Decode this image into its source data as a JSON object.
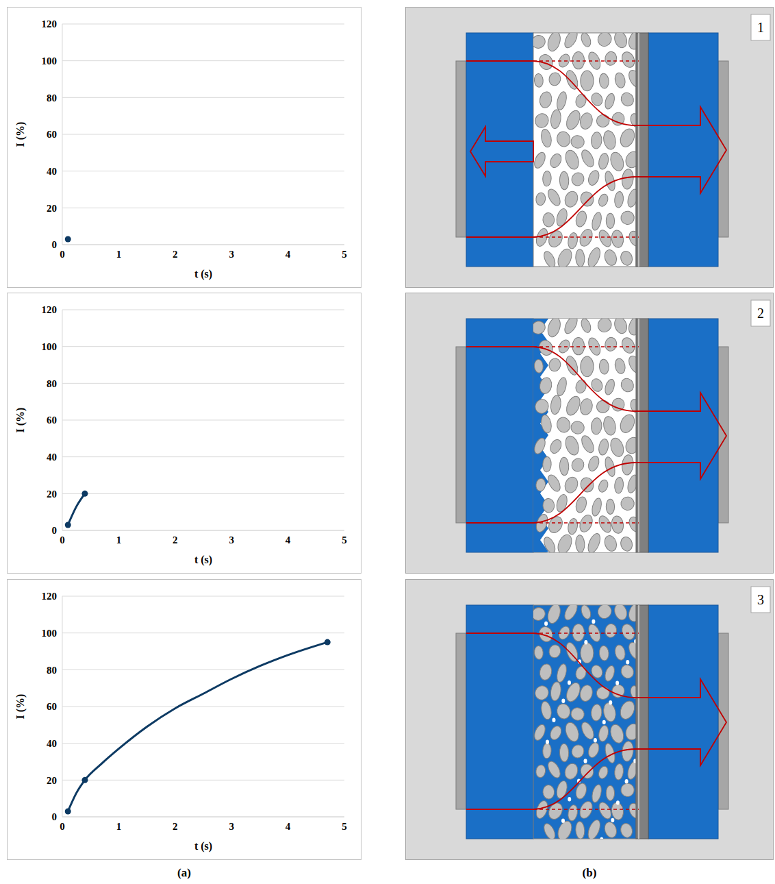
{
  "chart_data": [
    {
      "type": "line",
      "xlabel": "t (s)",
      "ylabel": "I (%)",
      "xlim": [
        0,
        5
      ],
      "xticks": [
        0,
        1,
        2,
        3,
        4,
        5
      ],
      "ylim": [
        0,
        120
      ],
      "yticks": [
        0,
        20,
        40,
        60,
        80,
        100,
        120
      ],
      "grid": true,
      "color": "#0d3a63",
      "series": [
        {
          "type": "scatter",
          "marker": "circle",
          "x": [
            0.1
          ],
          "values": [
            3
          ]
        }
      ]
    },
    {
      "type": "line",
      "xlabel": "t (s)",
      "ylabel": "I (%)",
      "xlim": [
        0,
        5
      ],
      "xticks": [
        0,
        1,
        2,
        3,
        4,
        5
      ],
      "ylim": [
        0,
        120
      ],
      "yticks": [
        0,
        20,
        40,
        60,
        80,
        100,
        120
      ],
      "grid": true,
      "color": "#0d3a63",
      "series": [
        {
          "type": "line",
          "marker": "none",
          "x": [
            0.1,
            0.25,
            0.4
          ],
          "values": [
            3,
            13,
            20
          ]
        },
        {
          "type": "scatter",
          "marker": "circle",
          "x": [
            0.1,
            0.4
          ],
          "values": [
            3,
            20
          ]
        }
      ]
    },
    {
      "type": "line",
      "xlabel": "t (s)",
      "ylabel": "I (%)",
      "xlim": [
        0,
        5
      ],
      "xticks": [
        0,
        1,
        2,
        3,
        4,
        5
      ],
      "ylim": [
        0,
        120
      ],
      "yticks": [
        0,
        20,
        40,
        60,
        80,
        100,
        120
      ],
      "grid": true,
      "color": "#0d3a63",
      "series": [
        {
          "type": "line",
          "marker": "none",
          "x": [
            0.1,
            0.25,
            0.4,
            0.7,
            1,
            1.5,
            2,
            2.5,
            3,
            3.5,
            4,
            4.7
          ],
          "values": [
            3,
            13,
            20,
            29,
            37,
            49,
            59,
            67,
            75,
            82,
            88,
            95
          ]
        },
        {
          "type": "scatter",
          "marker": "circle",
          "x": [
            0.1,
            0.4,
            4.7
          ],
          "values": [
            3,
            20,
            95
          ]
        }
      ]
    }
  ],
  "caption_a": "(a)",
  "caption_b": "(b)",
  "diagrams": [
    {
      "label": "1"
    },
    {
      "label": "2"
    },
    {
      "label": "3"
    }
  ]
}
